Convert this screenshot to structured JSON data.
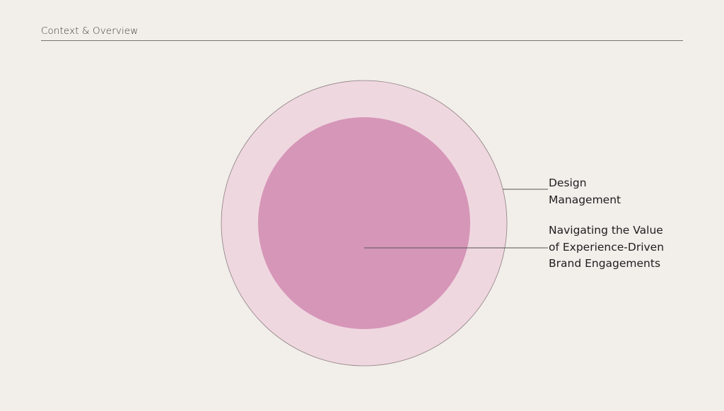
{
  "header": {
    "title": "Context & Overview"
  },
  "diagram": {
    "outer": {
      "label_lines": [
        "Design",
        "Management"
      ],
      "color": "#efd7df"
    },
    "inner": {
      "label_lines": [
        "Navigating the Value",
        "of Experience-Driven",
        "Brand Engagements"
      ],
      "color": "#d696b8"
    },
    "background": "#f2eeea"
  }
}
